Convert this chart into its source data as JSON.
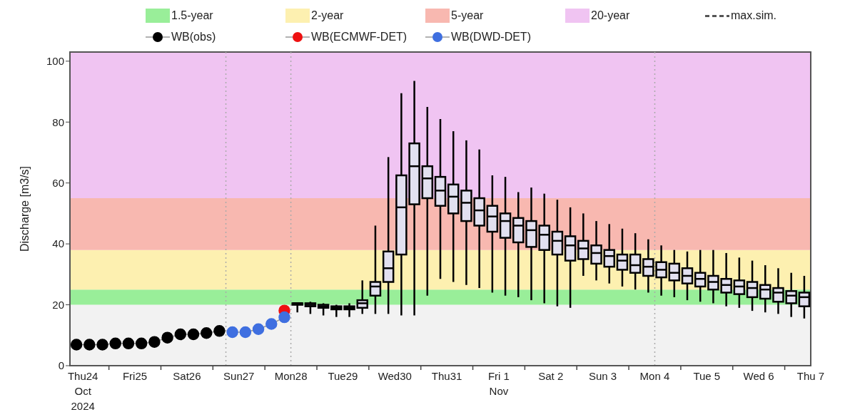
{
  "chart_data": {
    "type": "box",
    "ylabel": "Discharge [m3/s]",
    "ylim": [
      0,
      103
    ],
    "yticks": [
      0,
      20,
      40,
      60,
      80,
      100
    ],
    "xlim": [
      "2024-10-24T06:00",
      "2024-11-07T12:00"
    ],
    "xticks": [
      {
        "value": "2024-10-24T12:00",
        "label": "Thu24\nOct\n2024"
      },
      {
        "value": "2024-10-25T00:00",
        "label": null
      },
      {
        "value": "2024-10-25T12:00",
        "label": "Fri25"
      },
      {
        "value": "2024-10-26T00:00",
        "label": null
      },
      {
        "value": "2024-10-26T12:00",
        "label": "Sat26"
      },
      {
        "value": "2024-10-27T00:00",
        "label": null
      },
      {
        "value": "2024-10-27T12:00",
        "label": "Sun27"
      },
      {
        "value": "2024-10-28T00:00",
        "label": null
      },
      {
        "value": "2024-10-28T12:00",
        "label": "Mon28"
      },
      {
        "value": "2024-10-29T00:00",
        "label": null
      },
      {
        "value": "2024-10-29T12:00",
        "label": "Tue29"
      },
      {
        "value": "2024-10-30T00:00",
        "label": null
      },
      {
        "value": "2024-10-30T12:00",
        "label": "Wed30"
      },
      {
        "value": "2024-10-31T00:00",
        "label": null
      },
      {
        "value": "2024-10-31T12:00",
        "label": "Thu31"
      },
      {
        "value": "2024-11-01T00:00",
        "label": null
      },
      {
        "value": "2024-11-01T12:00",
        "label": "Fri 1\nNov"
      },
      {
        "value": "2024-11-02T00:00",
        "label": null
      },
      {
        "value": "2024-11-02T12:00",
        "label": "Sat 2"
      },
      {
        "value": "2024-11-03T00:00",
        "label": null
      },
      {
        "value": "2024-11-03T12:00",
        "label": "Sun 3"
      },
      {
        "value": "2024-11-04T00:00",
        "label": null
      },
      {
        "value": "2024-11-04T12:00",
        "label": "Mon 4"
      },
      {
        "value": "2024-11-05T00:00",
        "label": null
      },
      {
        "value": "2024-11-05T12:00",
        "label": "Tue 5"
      },
      {
        "value": "2024-11-06T00:00",
        "label": null
      },
      {
        "value": "2024-11-06T12:00",
        "label": "Wed 6"
      },
      {
        "value": "2024-11-07T00:00",
        "label": null
      },
      {
        "value": "2024-11-07T12:00",
        "label": "Thu 7"
      }
    ],
    "grid": false,
    "legend": "top",
    "bands": [
      {
        "axis": "y",
        "from": 0,
        "to": 20,
        "color": "#f2f2f2"
      },
      {
        "axis": "y",
        "from": 20,
        "to": 25,
        "label": "1.5-year",
        "color": "#99ee99"
      },
      {
        "axis": "y",
        "from": 25,
        "to": 38,
        "label": "2-year",
        "color": "#fdf0b0"
      },
      {
        "axis": "y",
        "from": 38,
        "to": 55,
        "label": "5-year",
        "color": "#f8b8b0"
      },
      {
        "axis": "y",
        "from": 55,
        "to": 103,
        "label": "20-year",
        "color": "#f0c4f2"
      }
    ],
    "ref_lines": [
      {
        "axis": "x",
        "value": "2024-10-27T06:00",
        "color": "#aaaaaa",
        "line_style": "dotted"
      },
      {
        "axis": "x",
        "value": "2024-10-28T12:00",
        "color": "#aaaaaa",
        "line_style": "dotted"
      },
      {
        "axis": "x",
        "value": "2024-11-04T12:00",
        "color": "#aaaaaa",
        "line_style": "dotted"
      }
    ],
    "series": [
      {
        "color": "#e2e0f0",
        "x": [
          "2024-10-28T15:00",
          "2024-10-28T21:00",
          "2024-10-29T03:00",
          "2024-10-29T09:00",
          "2024-10-29T15:00",
          "2024-10-29T21:00",
          "2024-10-30T03:00",
          "2024-10-30T09:00",
          "2024-10-30T15:00",
          "2024-10-30T21:00",
          "2024-10-31T03:00",
          "2024-10-31T09:00",
          "2024-10-31T15:00",
          "2024-10-31T21:00",
          "2024-11-01T03:00",
          "2024-11-01T09:00",
          "2024-11-01T15:00",
          "2024-11-01T21:00",
          "2024-11-02T03:00",
          "2024-11-02T09:00",
          "2024-11-02T15:00",
          "2024-11-02T21:00",
          "2024-11-03T03:00",
          "2024-11-03T09:00",
          "2024-11-03T15:00",
          "2024-11-03T21:00",
          "2024-11-04T03:00",
          "2024-11-04T09:00",
          "2024-11-04T15:00",
          "2024-11-04T21:00",
          "2024-11-05T03:00",
          "2024-11-05T09:00",
          "2024-11-05T15:00",
          "2024-11-05T21:00",
          "2024-11-06T03:00",
          "2024-11-06T09:00",
          "2024-11-06T15:00",
          "2024-11-06T21:00",
          "2024-11-07T03:00",
          "2024-11-07T09:00"
        ],
        "boxes": [
          {
            "low": 17.5,
            "q1": 20,
            "median": 20.5,
            "q3": 20.5,
            "high": 20.5
          },
          {
            "low": 17,
            "q1": 19.5,
            "median": 20,
            "q3": 20.5,
            "high": 21
          },
          {
            "low": 16.5,
            "q1": 19,
            "median": 19.5,
            "q3": 20,
            "high": 20.5
          },
          {
            "low": 16,
            "q1": 18.5,
            "median": 19,
            "q3": 19.5,
            "high": 20
          },
          {
            "low": 16,
            "q1": 18.5,
            "median": 19,
            "q3": 19.5,
            "high": 20.5
          },
          {
            "low": 17,
            "q1": 19,
            "median": 20.5,
            "q3": 21.5,
            "high": 28
          },
          {
            "low": 17,
            "q1": 23,
            "median": 26,
            "q3": 27.5,
            "high": 46
          },
          {
            "low": 17,
            "q1": 27.5,
            "median": 32,
            "q3": 37.5,
            "high": 68.5
          },
          {
            "low": 16.5,
            "q1": 36.5,
            "median": 52,
            "q3": 62.5,
            "high": 89.5
          },
          {
            "low": 16.5,
            "q1": 53,
            "median": 65.5,
            "q3": 73,
            "high": 93.5
          },
          {
            "low": 23,
            "q1": 55,
            "median": 61.5,
            "q3": 65.5,
            "high": 85
          },
          {
            "low": 28.5,
            "q1": 52.5,
            "median": 57.5,
            "q3": 62,
            "high": 81
          },
          {
            "low": 27.5,
            "q1": 50,
            "median": 55.5,
            "q3": 59.5,
            "high": 77
          },
          {
            "low": 26.5,
            "q1": 47.5,
            "median": 53.5,
            "q3": 57.5,
            "high": 74
          },
          {
            "low": 25.5,
            "q1": 46,
            "median": 51,
            "q3": 55,
            "high": 71
          },
          {
            "low": 24,
            "q1": 44,
            "median": 49,
            "q3": 52.5,
            "high": 62.5
          },
          {
            "low": 23,
            "q1": 42,
            "median": 47.5,
            "q3": 50,
            "high": 62
          },
          {
            "low": 22.5,
            "q1": 40.5,
            "median": 46,
            "q3": 48.5,
            "high": 57
          },
          {
            "low": 21.5,
            "q1": 39,
            "median": 44.5,
            "q3": 47.5,
            "high": 58.5
          },
          {
            "low": 20.5,
            "q1": 38,
            "median": 43,
            "q3": 46,
            "high": 56.5
          },
          {
            "low": 19.5,
            "q1": 36.5,
            "median": 41,
            "q3": 44,
            "high": 54.5
          },
          {
            "low": 19,
            "q1": 34.5,
            "median": 39.5,
            "q3": 42.5,
            "high": 52
          },
          {
            "low": 29.5,
            "q1": 35,
            "median": 38.5,
            "q3": 41,
            "high": 50
          },
          {
            "low": 28,
            "q1": 33.5,
            "median": 37,
            "q3": 39.5,
            "high": 47.5
          },
          {
            "low": 27,
            "q1": 32.5,
            "median": 36,
            "q3": 38,
            "high": 46.5
          },
          {
            "low": 26,
            "q1": 31.5,
            "median": 34.5,
            "q3": 36.5,
            "high": 45
          },
          {
            "low": 25,
            "q1": 30.5,
            "median": 33,
            "q3": 36.5,
            "high": 43.5
          },
          {
            "low": 24,
            "q1": 29.5,
            "median": 32.5,
            "q3": 35,
            "high": 41.5
          },
          {
            "low": 23,
            "q1": 29,
            "median": 31.5,
            "q3": 34,
            "high": 39.5
          },
          {
            "low": 22.5,
            "q1": 28,
            "median": 30.5,
            "q3": 33.5,
            "high": 38
          },
          {
            "low": 21.5,
            "q1": 27,
            "median": 29.5,
            "q3": 32,
            "high": 37.5
          },
          {
            "low": 21,
            "q1": 26,
            "median": 28.5,
            "q3": 30.5,
            "high": 38
          },
          {
            "low": 20.5,
            "q1": 25,
            "median": 27.5,
            "q3": 29.5,
            "high": 38
          },
          {
            "low": 19.5,
            "q1": 24,
            "median": 26.5,
            "q3": 28.5,
            "high": 37
          },
          {
            "low": 19,
            "q1": 23.5,
            "median": 26,
            "q3": 28,
            "high": 35.5
          },
          {
            "low": 18,
            "q1": 22.5,
            "median": 25.5,
            "q3": 27.5,
            "high": 34.5
          },
          {
            "low": 17.5,
            "q1": 22,
            "median": 25,
            "q3": 26.5,
            "high": 33
          },
          {
            "low": 17,
            "q1": 21,
            "median": 24,
            "q3": 25.5,
            "high": 32
          },
          {
            "low": 16,
            "q1": 20.5,
            "median": 23,
            "q3": 24.5,
            "high": 30.5
          },
          {
            "low": 15.5,
            "q1": 19.5,
            "median": 22.5,
            "q3": 24,
            "high": 29.5
          }
        ]
      },
      {
        "name": "max.sim.",
        "type": "line",
        "color": "#555555",
        "line_style": "dashed",
        "marker": "none"
      },
      {
        "name": "WB(obs)",
        "type": "line",
        "color": "#000000",
        "marker": "circle",
        "x": [
          "2024-10-24T09:00",
          "2024-10-24T15:00",
          "2024-10-24T21:00",
          "2024-10-25T03:00",
          "2024-10-25T09:00",
          "2024-10-25T15:00",
          "2024-10-25T21:00",
          "2024-10-26T03:00",
          "2024-10-26T09:00",
          "2024-10-26T15:00",
          "2024-10-26T21:00",
          "2024-10-27T03:00"
        ],
        "values": [
          6.9,
          6.9,
          6.9,
          7.3,
          7.3,
          7.3,
          7.8,
          9.2,
          10.3,
          10.3,
          10.7,
          11.4
        ]
      },
      {
        "name": "WB(ECMWF-DET)",
        "type": "line",
        "color": "#ee1111",
        "marker": "circle",
        "x": [
          "2024-10-28T09:00"
        ],
        "values": [
          18.1
        ]
      },
      {
        "name": "WB(DWD-DET)",
        "type": "line",
        "color": "#3f6fe0",
        "marker": "circle",
        "x": [
          "2024-10-27T09:00",
          "2024-10-27T15:00",
          "2024-10-27T21:00",
          "2024-10-28T03:00",
          "2024-10-28T09:00"
        ],
        "values": [
          11,
          11,
          12,
          13.7,
          15.9
        ]
      }
    ]
  }
}
